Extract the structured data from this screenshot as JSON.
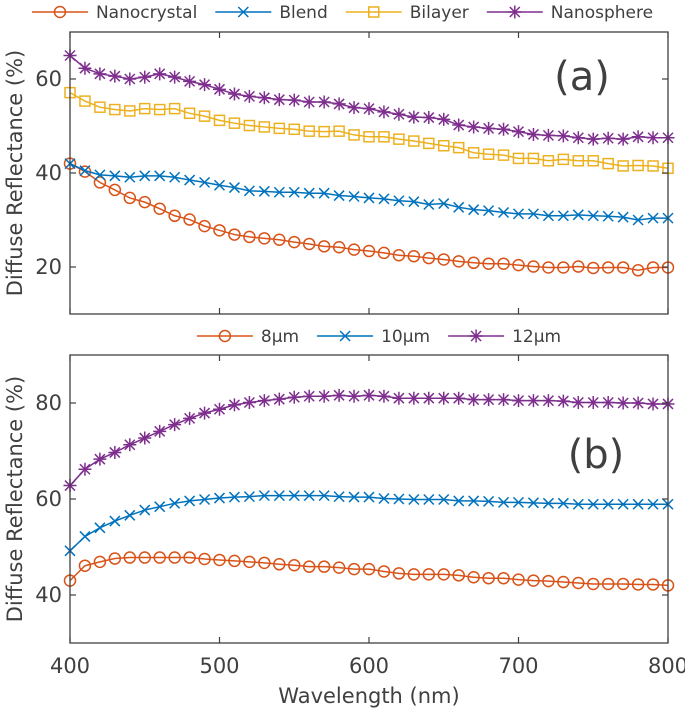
{
  "colors": {
    "orange": "#D95319",
    "blue": "#0072BD",
    "yellow": "#EDB120",
    "purple": "#7E2F8E",
    "axis": "#404040"
  },
  "chart_data": [
    {
      "type": "line",
      "panel_label": "(a)",
      "xlabel": "",
      "ylabel": "Diffuse Reflectance (%)",
      "xlim": [
        400,
        800
      ],
      "ylim": [
        10,
        70
      ],
      "xticks": [
        400,
        500,
        600,
        700,
        800
      ],
      "xtick_labels_shown": false,
      "yticks": [
        20,
        40,
        60
      ],
      "grid": false,
      "legend": "top, horizontal, outside",
      "x": [
        400,
        410,
        420,
        430,
        440,
        450,
        460,
        470,
        480,
        490,
        500,
        510,
        520,
        530,
        540,
        550,
        560,
        570,
        580,
        590,
        600,
        610,
        620,
        630,
        640,
        650,
        660,
        670,
        680,
        690,
        700,
        710,
        720,
        730,
        740,
        750,
        760,
        770,
        780,
        790,
        800
      ],
      "series": [
        {
          "name": "Nanocrystal",
          "marker": "circle",
          "color": "#D95319",
          "values": [
            42.0,
            40.3,
            38.0,
            36.4,
            34.7,
            33.8,
            32.4,
            30.9,
            30.1,
            28.7,
            27.8,
            26.9,
            26.4,
            26.1,
            25.8,
            25.3,
            24.9,
            24.4,
            24.2,
            23.7,
            23.4,
            23.0,
            22.5,
            22.3,
            21.9,
            21.6,
            21.2,
            20.9,
            20.7,
            20.7,
            20.4,
            20.1,
            19.9,
            19.9,
            20.1,
            19.8,
            19.9,
            19.9,
            19.3,
            19.9,
            19.9
          ]
        },
        {
          "name": "Blend",
          "marker": "x",
          "color": "#0072BD",
          "values": [
            42.0,
            40.5,
            39.6,
            39.4,
            39.1,
            39.4,
            39.4,
            39.1,
            38.5,
            38.0,
            37.4,
            36.9,
            36.2,
            36.1,
            35.9,
            35.9,
            35.7,
            35.7,
            35.2,
            35.0,
            34.7,
            34.5,
            34.1,
            33.9,
            33.3,
            33.5,
            32.7,
            32.2,
            32.0,
            31.6,
            31.3,
            31.3,
            30.9,
            30.9,
            31.1,
            30.9,
            30.8,
            30.6,
            30.0,
            30.4,
            30.4
          ]
        },
        {
          "name": "Bilayer",
          "marker": "square",
          "color": "#EDB120",
          "values": [
            57.1,
            55.3,
            54.0,
            53.5,
            53.2,
            53.7,
            53.5,
            53.7,
            52.7,
            52.1,
            51.2,
            50.6,
            50.1,
            49.8,
            49.5,
            49.3,
            48.9,
            48.8,
            48.9,
            48.1,
            47.7,
            47.7,
            47.2,
            46.8,
            46.3,
            45.8,
            45.4,
            44.3,
            44.0,
            43.8,
            43.1,
            43.1,
            42.6,
            42.9,
            42.6,
            42.6,
            42.0,
            41.5,
            41.6,
            41.5,
            41.0
          ]
        },
        {
          "name": "Nanosphere",
          "marker": "asterisk",
          "color": "#7E2F8E",
          "values": [
            65.0,
            62.3,
            61.1,
            60.6,
            60.0,
            60.4,
            61.1,
            60.4,
            59.5,
            58.8,
            57.8,
            56.8,
            56.3,
            56.0,
            55.6,
            55.5,
            55.1,
            55.1,
            54.7,
            53.9,
            53.7,
            53.0,
            52.5,
            51.9,
            51.8,
            51.4,
            50.2,
            49.8,
            49.5,
            49.3,
            48.8,
            48.2,
            48.0,
            47.9,
            47.5,
            47.2,
            47.4,
            47.2,
            47.7,
            47.5,
            47.5
          ]
        }
      ]
    },
    {
      "type": "line",
      "panel_label": "(b)",
      "xlabel": "Wavelength (nm)",
      "ylabel": "Diffuse Reflectance (%)",
      "xlim": [
        400,
        800
      ],
      "ylim": [
        30,
        90
      ],
      "xticks": [
        400,
        500,
        600,
        700,
        800
      ],
      "yticks": [
        40,
        60,
        80
      ],
      "grid": false,
      "legend": "top, horizontal, outside",
      "x": [
        400,
        410,
        420,
        430,
        440,
        450,
        460,
        470,
        480,
        490,
        500,
        510,
        520,
        530,
        540,
        550,
        560,
        570,
        580,
        590,
        600,
        610,
        620,
        630,
        640,
        650,
        660,
        670,
        680,
        690,
        700,
        710,
        720,
        730,
        740,
        750,
        760,
        770,
        780,
        790,
        800
      ],
      "series": [
        {
          "name": "8μm",
          "marker": "circle",
          "color": "#D95319",
          "values": [
            43.0,
            46.1,
            46.9,
            47.6,
            47.8,
            47.8,
            47.8,
            47.8,
            47.8,
            47.5,
            47.3,
            47.1,
            46.9,
            46.7,
            46.4,
            46.2,
            45.9,
            45.9,
            45.7,
            45.4,
            45.4,
            44.9,
            44.5,
            44.3,
            44.3,
            44.3,
            44.1,
            43.7,
            43.5,
            43.5,
            43.2,
            43.0,
            42.9,
            42.7,
            42.5,
            42.3,
            42.3,
            42.3,
            42.2,
            42.2,
            42.0
          ]
        },
        {
          "name": "10μm",
          "marker": "x",
          "color": "#0072BD",
          "values": [
            49.2,
            52.2,
            54.0,
            55.4,
            56.6,
            57.7,
            58.4,
            59.1,
            59.6,
            59.9,
            60.2,
            60.4,
            60.5,
            60.7,
            60.7,
            60.7,
            60.7,
            60.7,
            60.5,
            60.4,
            60.4,
            60.1,
            60.0,
            59.9,
            59.9,
            59.9,
            59.6,
            59.6,
            59.5,
            59.3,
            59.3,
            59.2,
            59.1,
            59.1,
            58.9,
            58.9,
            58.9,
            58.9,
            58.9,
            58.9,
            58.9
          ]
        },
        {
          "name": "12μm",
          "marker": "asterisk",
          "color": "#7E2F8E",
          "values": [
            62.8,
            66.2,
            68.3,
            69.7,
            71.3,
            72.7,
            74.1,
            75.5,
            76.8,
            77.9,
            78.7,
            79.6,
            80.1,
            80.5,
            80.8,
            81.2,
            81.4,
            81.4,
            81.6,
            81.4,
            81.6,
            81.4,
            81.0,
            81.0,
            81.0,
            81.0,
            81.0,
            80.7,
            80.7,
            80.7,
            80.5,
            80.5,
            80.5,
            80.4,
            80.1,
            80.1,
            80.1,
            80.0,
            80.0,
            79.8,
            79.8
          ]
        }
      ]
    }
  ]
}
